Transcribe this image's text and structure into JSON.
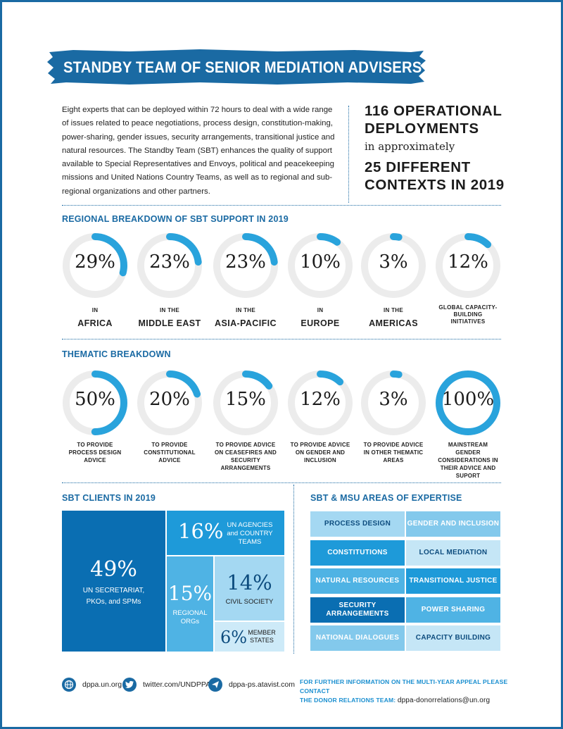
{
  "title": "STANDBY TEAM OF SENIOR MEDIATION ADVISERS",
  "intro": "Eight experts that can be deployed within 72 hours to deal with a wide range of issues related to peace negotiations, process design, constitution-making, power-sharing, gender issues, security arrangements, transitional justice and natural resources. The Standby Team (SBT) enhances the quality of support available to Special Representatives and Envoys, political and peacekeeping missions and United Nations Country Teams, as well as to regional and sub-regional organizations and other partners.",
  "stats": {
    "line1": "116 OPERATIONAL",
    "line2": "DEPLOYMENTS",
    "middle": "in approximately",
    "line3": "25 DIFFERENT",
    "line4": "CONTEXTS IN 2019"
  },
  "regional": {
    "title": "REGIONAL BREAKDOWN OF SBT SUPPORT IN 2019",
    "items": [
      {
        "pct": "29%",
        "value": 29,
        "small": "IN",
        "big": "AFRICA"
      },
      {
        "pct": "23%",
        "value": 23,
        "small": "IN THE",
        "big": "MIDDLE EAST"
      },
      {
        "pct": "23%",
        "value": 23,
        "small": "IN THE",
        "big": "ASIA-PACIFIC"
      },
      {
        "pct": "10%",
        "value": 10,
        "small": "IN",
        "big": "EUROPE"
      },
      {
        "pct": "3%",
        "value": 3,
        "small": "IN THE",
        "big": "AMERICAS"
      },
      {
        "pct": "12%",
        "value": 12,
        "small": "GLOBAL CAPACITY-BUILDING INITIATIVES",
        "big": ""
      }
    ]
  },
  "thematic": {
    "title": "THEMATIC BREAKDOWN",
    "items": [
      {
        "pct": "50%",
        "value": 50,
        "label": "TO PROVIDE PROCESS DESIGN ADVICE"
      },
      {
        "pct": "20%",
        "value": 20,
        "label": "TO PROVIDE CONSTITUTIONAL ADVICE"
      },
      {
        "pct": "15%",
        "value": 15,
        "label": "TO PROVIDE ADVICE ON CEASEFIRES AND SECURITY ARRANGEMENTS"
      },
      {
        "pct": "12%",
        "value": 12,
        "label": "TO PROVIDE ADVICE ON GENDER AND INCLUSION"
      },
      {
        "pct": "3%",
        "value": 3,
        "label": "TO PROVIDE ADVICE IN OTHER THEMATIC AREAS"
      },
      {
        "pct": "100%",
        "value": 100,
        "label": "MAINSTREAM GENDER CONSIDERATIONS IN THEIR ADVICE AND SUPORT"
      }
    ]
  },
  "clients": {
    "title": "SBT CLIENTS IN 2019",
    "secretariat": {
      "pct": "49%",
      "label": "UN SECRETARIAT, PKOs, and SPMs"
    },
    "agencies": {
      "pct": "16%",
      "label": "UN AGENCIES and COUNTRY TEAMS"
    },
    "regional": {
      "pct": "15%",
      "label": "REGIONAL ORGs"
    },
    "civil": {
      "pct": "14%",
      "label": "CIVIL SOCIETY"
    },
    "member": {
      "pct": "6%",
      "label": "MEMBER STATES"
    }
  },
  "expertise": {
    "title": "SBT & MSU AREAS OF EXPERTISE",
    "cells": [
      {
        "label": "PROCESS DESIGN"
      },
      {
        "label": "GENDER AND INCLUSION"
      },
      {
        "label": "CONSTITUTIONS"
      },
      {
        "label": "LOCAL MEDIATION"
      },
      {
        "label": "NATURAL RESOURCES"
      },
      {
        "label": "TRANSITIONAL JUSTICE"
      },
      {
        "label": "SECURITY ARRANGEMENTS"
      },
      {
        "label": "POWER SHARING"
      },
      {
        "label": "NATIONAL DIALOGUES"
      },
      {
        "label": "CAPACITY BUILDING"
      }
    ]
  },
  "footer": {
    "web": "dppa.un.org",
    "twitter": "twitter.com/UNDPPA",
    "atavist": "dppa-ps.atavist.com",
    "contact_line1": "FOR FURTHER INFORMATION ON THE MULTI-YEAR APPEAL PLEASE CONTACT",
    "contact_line2": "THE DONOR RELATIONS TEAM:",
    "email": "dppa-donorrelations@un.org"
  },
  "colors": {
    "brand": "#1a6aa3",
    "accent": "#29a3dc",
    "track": "#ececec"
  }
}
